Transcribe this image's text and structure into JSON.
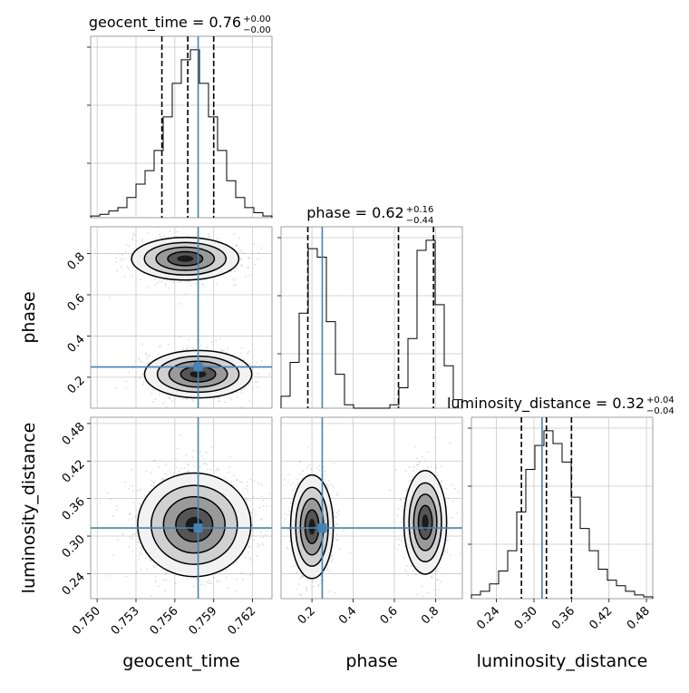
{
  "figure": {
    "type": "corner_plot",
    "parameters": [
      "geocent_time",
      "phase",
      "luminosity_distance"
    ],
    "truth_color": "#4682b4",
    "sample_color": "#808080"
  },
  "chart_data": [
    {
      "type": "histogram",
      "panel": "geocent_time-marginal",
      "title": "geocent_time = 0.76",
      "title_sup": "+0.00",
      "title_sub": "−0.00",
      "xlim": [
        0.7495,
        0.7635
      ],
      "bin_edges": [
        0.7495,
        0.7502,
        0.7509,
        0.7516,
        0.7523,
        0.753,
        0.7537,
        0.7544,
        0.7551,
        0.7558,
        0.7565,
        0.7572,
        0.7579,
        0.7586,
        0.7593,
        0.76,
        0.7607,
        0.7614,
        0.7621,
        0.7628,
        0.7635
      ],
      "counts": [
        1,
        2,
        4,
        6,
        12,
        20,
        28,
        40,
        60,
        80,
        94,
        100,
        80,
        60,
        40,
        22,
        12,
        6,
        3,
        1
      ],
      "quantiles": [
        0.755,
        0.757,
        0.759
      ],
      "truth": 0.7578
    },
    {
      "type": "histogram",
      "panel": "phase-marginal",
      "title": "phase = 0.62",
      "title_sup": "+0.16",
      "title_sub": "−0.44",
      "xlim": [
        0.05,
        0.93
      ],
      "bin_edges": [
        0.05,
        0.094,
        0.138,
        0.182,
        0.226,
        0.27,
        0.314,
        0.358,
        0.402,
        0.446,
        0.49,
        0.534,
        0.578,
        0.622,
        0.666,
        0.71,
        0.754,
        0.798,
        0.842,
        0.886,
        0.93
      ],
      "counts": [
        7,
        27,
        56,
        94,
        89,
        51,
        20,
        2,
        0,
        0,
        0,
        0,
        2,
        12,
        41,
        93,
        99,
        61,
        25,
        5
      ],
      "quantiles": [
        0.18,
        0.62,
        0.79
      ],
      "truth": 0.25,
      "xticks": [
        0.2,
        0.4,
        0.6,
        0.8
      ]
    },
    {
      "type": "histogram",
      "panel": "luminosity_distance-marginal",
      "title": "luminosity_distance = 0.32",
      "title_sup": "+0.04",
      "title_sub": "−0.04",
      "xlim": [
        0.2,
        0.49
      ],
      "bin_edges": [
        0.2,
        0.2145,
        0.229,
        0.2435,
        0.258,
        0.2725,
        0.287,
        0.3015,
        0.316,
        0.3305,
        0.345,
        0.3595,
        0.374,
        0.3885,
        0.403,
        0.4175,
        0.432,
        0.4465,
        0.461,
        0.4755,
        0.49
      ],
      "counts": [
        2,
        4,
        8,
        15,
        26,
        47,
        70,
        83,
        91,
        84,
        74,
        55,
        38,
        26,
        16,
        10,
        7,
        4,
        2,
        1
      ],
      "quantiles": [
        0.28,
        0.32,
        0.36
      ],
      "truth": 0.313,
      "xticks": [
        0.24,
        0.3,
        0.36,
        0.42,
        0.48
      ]
    },
    {
      "type": "scatter_contour",
      "panel": "phase-vs-geocent_time",
      "xlim": [
        0.7495,
        0.7635
      ],
      "ylim": [
        0.05,
        0.93
      ],
      "modes": [
        {
          "cx": 0.7568,
          "cy": 0.775,
          "sx": 0.0018,
          "sy": 0.045,
          "weight": 0.52
        },
        {
          "cx": 0.7578,
          "cy": 0.215,
          "sx": 0.0018,
          "sy": 0.05,
          "weight": 0.48
        }
      ],
      "truth": [
        0.7578,
        0.25
      ],
      "yticks": [
        0.2,
        0.4,
        0.6,
        0.8
      ]
    },
    {
      "type": "scatter_contour",
      "panel": "luminosity_distance-vs-geocent_time",
      "xlim": [
        0.7495,
        0.7635
      ],
      "ylim": [
        0.2,
        0.49
      ],
      "modes": [
        {
          "cx": 0.7575,
          "cy": 0.318,
          "sx": 0.0019,
          "sy": 0.036,
          "weight": 1.0
        }
      ],
      "truth": [
        0.7578,
        0.313
      ],
      "xticks": [
        0.75,
        0.753,
        0.756,
        0.759,
        0.762
      ],
      "yticks": [
        0.24,
        0.3,
        0.36,
        0.42,
        0.48
      ]
    },
    {
      "type": "scatter_contour",
      "panel": "luminosity_distance-vs-phase",
      "xlim": [
        0.05,
        0.93
      ],
      "ylim": [
        0.2,
        0.49
      ],
      "modes": [
        {
          "cx": 0.2,
          "cy": 0.315,
          "sx": 0.045,
          "sy": 0.036,
          "weight": 0.5
        },
        {
          "cx": 0.75,
          "cy": 0.322,
          "sx": 0.045,
          "sy": 0.036,
          "weight": 0.5
        }
      ],
      "truth": [
        0.25,
        0.313
      ]
    }
  ],
  "labels": {
    "x_geocent": "geocent_time",
    "x_phase": "phase",
    "x_lumi": "luminosity_distance",
    "y_phase": "phase",
    "y_lumi": "luminosity_distance"
  },
  "ticklabels": {
    "geocent": [
      "0.750",
      "0.753",
      "0.756",
      "0.759",
      "0.762"
    ],
    "phase": [
      "0.2",
      "0.4",
      "0.6",
      "0.8"
    ],
    "lumi": [
      "0.24",
      "0.30",
      "0.36",
      "0.42",
      "0.48"
    ]
  }
}
